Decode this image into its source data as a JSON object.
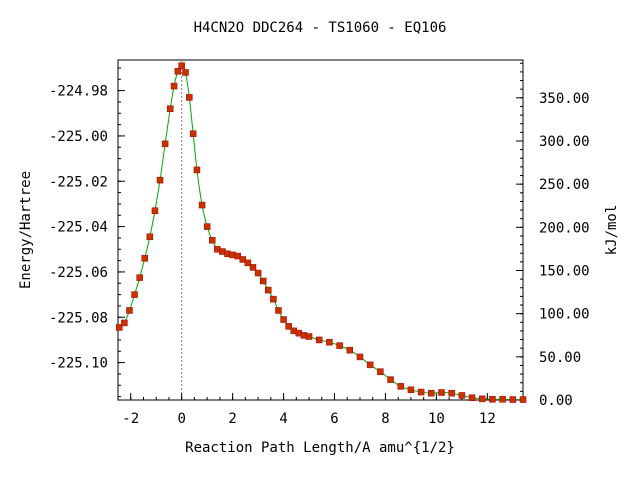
{
  "chart_data": {
    "type": "line",
    "title": "H4CN2O   DDC264 - TS1060 - EQ106",
    "xlabel": "Reaction Path Length/A amu^{1/2}",
    "ylabel": "Energy/Hartree",
    "y2label": "kJ/mol",
    "xlim": [
      -2.5,
      13.4
    ],
    "ylim": [
      -225.1165,
      -224.9665
    ],
    "y2lim": [
      0,
      393.8
    ],
    "x_ticks": [
      "-2",
      "0",
      "2",
      "4",
      "6",
      "8",
      "10",
      "12"
    ],
    "y_ticks": [
      "-224.98",
      "-225.00",
      "-225.02",
      "-225.04",
      "-225.06",
      "-225.08",
      "-225.10"
    ],
    "y2_ticks": [
      "350.00",
      "300.00",
      "250.00",
      "200.00",
      "150.00",
      "100.00",
      "50.00",
      "0.00"
    ],
    "ts_marker_x": 0,
    "colors": {
      "line": "#00aa00",
      "marker_fill": "#c83200",
      "marker_edge": "#a00000",
      "ts_line": "#808080"
    },
    "series": [
      {
        "x": [
          -2.45,
          -2.25,
          -2.05,
          -1.85,
          -1.65,
          -1.45,
          -1.25,
          -1.05,
          -0.85,
          -0.65,
          -0.45,
          -0.3,
          -0.15,
          0,
          0.15,
          0.3,
          0.45,
          0.6,
          0.8,
          1.0,
          1.2,
          1.4,
          1.6,
          1.8,
          2.0,
          2.2,
          2.4,
          2.6,
          2.8,
          3.0,
          3.2,
          3.4,
          3.6,
          3.8,
          4.0,
          4.2,
          4.4,
          4.6,
          4.8,
          5.0,
          5.4,
          5.8,
          6.2,
          6.6,
          7.0,
          7.4,
          7.8,
          8.2,
          8.6,
          9.0,
          9.4,
          9.8,
          10.2,
          10.6,
          11.0,
          11.4,
          11.8,
          12.2,
          12.6,
          13.0,
          13.4
        ],
        "y": [
          -225.0845,
          -225.0825,
          -225.077,
          -225.07,
          -225.0625,
          -225.054,
          -225.0445,
          -225.033,
          -225.0195,
          -225.0035,
          -224.988,
          -224.978,
          -224.9715,
          -224.969,
          -224.972,
          -224.983,
          -224.999,
          -225.015,
          -225.0305,
          -225.04,
          -225.046,
          -225.05,
          -225.051,
          -225.052,
          -225.0525,
          -225.053,
          -225.0545,
          -225.056,
          -225.058,
          -225.0605,
          -225.064,
          -225.068,
          -225.072,
          -225.077,
          -225.081,
          -225.084,
          -225.086,
          -225.087,
          -225.088,
          -225.0885,
          -225.09,
          -225.091,
          -225.0925,
          -225.0945,
          -225.0975,
          -225.101,
          -225.104,
          -225.1075,
          -225.1105,
          -225.112,
          -225.113,
          -225.1135,
          -225.1132,
          -225.1135,
          -225.1145,
          -225.1155,
          -225.116,
          -225.1162,
          -225.1162,
          -225.1163,
          -225.1163
        ]
      }
    ]
  }
}
